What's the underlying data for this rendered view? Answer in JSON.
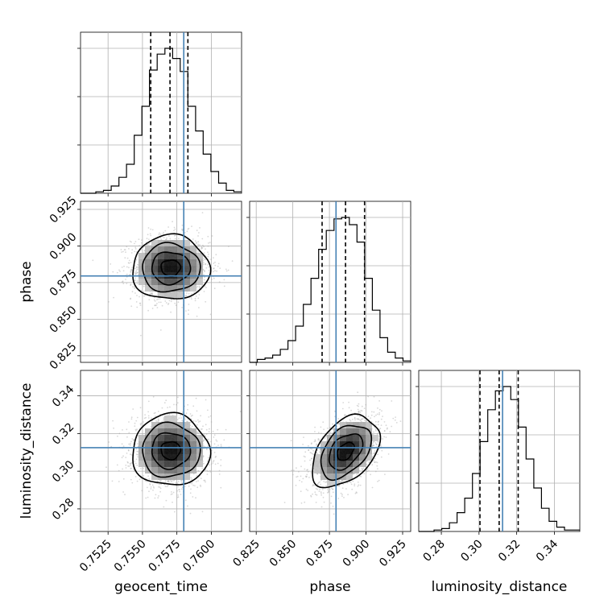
{
  "chart_data": {
    "type": "corner",
    "parameters": [
      "geocent_time",
      "phase",
      "luminosity_distance"
    ],
    "axes": {
      "geocent_time": {
        "label": "geocent_time",
        "range": [
          0.7505,
          0.7622
        ],
        "ticks": [
          0.7525,
          0.755,
          0.7575,
          0.76
        ],
        "tick_labels": [
          "0.7525",
          "0.7550",
          "0.7575",
          "0.7600"
        ],
        "truth": 0.758,
        "quantiles": [
          0.7556,
          0.757,
          0.7583
        ]
      },
      "phase": {
        "label": "phase",
        "range": [
          0.8205,
          0.9305
        ],
        "ticks": [
          0.825,
          0.85,
          0.875,
          0.9,
          0.925
        ],
        "tick_labels": [
          "0.825",
          "0.850",
          "0.875",
          "0.900",
          "0.925"
        ],
        "truth": 0.8795,
        "quantiles": [
          0.87,
          0.886,
          0.899
        ]
      },
      "luminosity_distance": {
        "label": "luminosity_distance",
        "range": [
          0.268,
          0.3535
        ],
        "ticks": [
          0.28,
          0.3,
          0.32,
          0.34
        ],
        "tick_labels": [
          "0.28",
          "0.30",
          "0.32",
          "0.34"
        ],
        "truth": 0.3125,
        "quantiles": [
          0.3005,
          0.3107,
          0.3208
        ]
      }
    },
    "histograms": {
      "geocent_time": {
        "bin_edges": [
          0.7505,
          0.75106,
          0.75161,
          0.75217,
          0.75273,
          0.75329,
          0.75384,
          0.7544,
          0.75496,
          0.75551,
          0.75607,
          0.75663,
          0.75719,
          0.75774,
          0.7583,
          0.75886,
          0.75941,
          0.75997,
          0.76053,
          0.76109,
          0.76164,
          0.7622
        ],
        "counts": [
          0.0,
          0.0,
          0.01,
          0.02,
          0.05,
          0.11,
          0.2,
          0.4,
          0.6,
          0.85,
          0.96,
          1.0,
          0.93,
          0.84,
          0.6,
          0.43,
          0.27,
          0.15,
          0.07,
          0.02,
          0.01
        ]
      },
      "phase": {
        "bin_edges": [
          0.8205,
          0.82574,
          0.83098,
          0.83621,
          0.84145,
          0.84669,
          0.85193,
          0.85717,
          0.8624,
          0.86764,
          0.87288,
          0.87812,
          0.88336,
          0.88859,
          0.89383,
          0.89907,
          0.90431,
          0.90955,
          0.91479,
          0.92002,
          0.92526,
          0.9305
        ],
        "counts": [
          0.0,
          0.02,
          0.03,
          0.05,
          0.09,
          0.15,
          0.25,
          0.4,
          0.58,
          0.78,
          0.91,
          0.99,
          1.0,
          0.95,
          0.83,
          0.58,
          0.36,
          0.17,
          0.07,
          0.03,
          0.01
        ]
      },
      "luminosity_distance": {
        "bin_edges": [
          0.268,
          0.27207,
          0.27614,
          0.28021,
          0.28429,
          0.28836,
          0.29243,
          0.2965,
          0.30057,
          0.30464,
          0.30871,
          0.31279,
          0.31686,
          0.32093,
          0.325,
          0.32907,
          0.33314,
          0.33721,
          0.34129,
          0.34536,
          0.34943,
          0.3535
        ],
        "counts": [
          0.0,
          0.0,
          0.01,
          0.02,
          0.06,
          0.13,
          0.23,
          0.4,
          0.62,
          0.84,
          0.97,
          1.0,
          0.91,
          0.72,
          0.5,
          0.3,
          0.16,
          0.07,
          0.03,
          0.01,
          0.01
        ]
      }
    },
    "joint": [
      {
        "x": "geocent_time",
        "y": "phase",
        "center": [
          0.75705,
          0.885
        ],
        "sigma": [
          0.0014,
          0.011
        ],
        "correlation": 0.0
      },
      {
        "x": "geocent_time",
        "y": "luminosity_distance",
        "center": [
          0.75705,
          0.311
        ],
        "sigma": [
          0.0014,
          0.0095
        ],
        "correlation": 0.0
      },
      {
        "x": "phase",
        "y": "luminosity_distance",
        "center": [
          0.886,
          0.3105
        ],
        "sigma": [
          0.0115,
          0.0095
        ],
        "correlation": 0.42
      }
    ],
    "contour_levels": [
      0.118,
      0.393,
      0.675,
      0.865
    ],
    "colors": {
      "truth": "#4682b4",
      "contour": "#000000",
      "points": "#a9a9a9",
      "histogram": "#000000"
    },
    "grid": true
  }
}
